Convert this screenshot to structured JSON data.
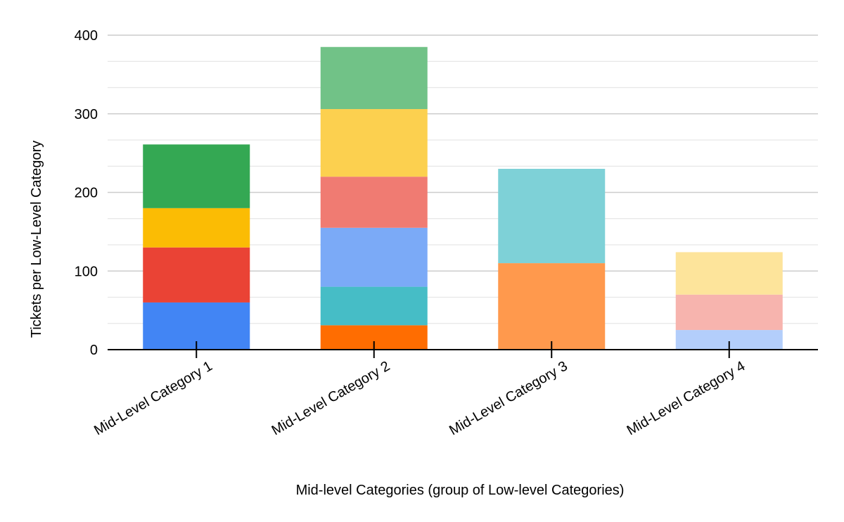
{
  "chart_data": {
    "type": "bar",
    "stacked": true,
    "title": "",
    "xlabel": "Mid-level Categories (group of Low-level Categories)",
    "ylabel": "Tickets per Low-Level Category",
    "ylim": [
      0,
      400
    ],
    "yticks": [
      0,
      100,
      200,
      300,
      400
    ],
    "grid": true,
    "legend": "none",
    "categories": [
      "Mid-Level Category 1",
      "Mid-Level Category 2",
      "Mid-Level Category 3",
      "Mid-Level Category 4"
    ],
    "stacks": [
      [
        {
          "value": 60,
          "color": "#4285f4"
        },
        {
          "value": 70,
          "color": "#ea4335"
        },
        {
          "value": 50,
          "color": "#fbbc04"
        },
        {
          "value": 81,
          "color": "#34a853"
        }
      ],
      [
        {
          "value": 31,
          "color": "#ff6d01"
        },
        {
          "value": 49,
          "color": "#46bdc6"
        },
        {
          "value": 75,
          "color": "#7baaf7"
        },
        {
          "value": 65,
          "color": "#f07b72"
        },
        {
          "value": 86,
          "color": "#fcd04f"
        },
        {
          "value": 79,
          "color": "#71c287"
        }
      ],
      [
        {
          "value": 110,
          "color": "#ff994d"
        },
        {
          "value": 120,
          "color": "#7ed1d7"
        }
      ],
      [
        {
          "value": 25,
          "color": "#b3cefb"
        },
        {
          "value": 45,
          "color": "#f7b4ae"
        },
        {
          "value": 54,
          "color": "#fde49b"
        }
      ]
    ]
  }
}
